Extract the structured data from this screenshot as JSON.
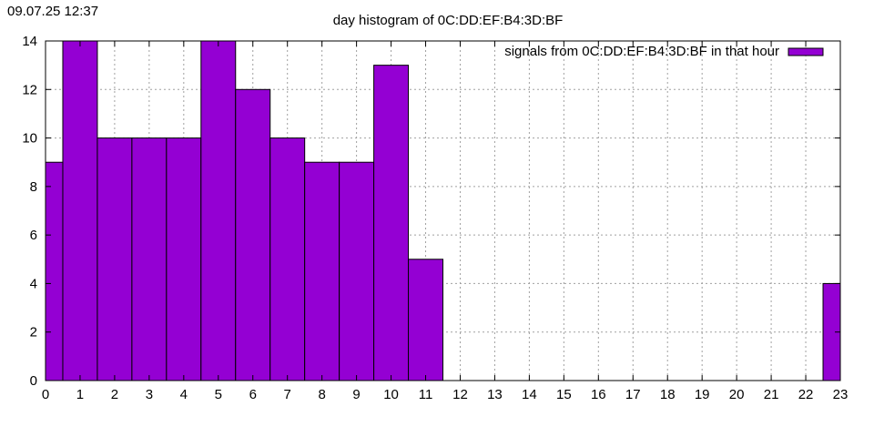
{
  "header": {
    "timestamp": "09.07.25 12:37"
  },
  "chart_data": {
    "type": "bar",
    "title": "day histogram of 0C:DD:EF:B4:3D:BF",
    "xlabel": "",
    "ylabel": "",
    "categories": [
      "0",
      "1",
      "2",
      "3",
      "4",
      "5",
      "6",
      "7",
      "8",
      "9",
      "10",
      "11",
      "12",
      "13",
      "14",
      "15",
      "16",
      "17",
      "18",
      "19",
      "20",
      "21",
      "22",
      "23"
    ],
    "series": [
      {
        "name": "signals from 0C:DD:EF:B4:3D:BF in that hour",
        "color": "#9400d3",
        "values": [
          9,
          14,
          10,
          10,
          10,
          14,
          12,
          10,
          9,
          9,
          13,
          5,
          0,
          0,
          0,
          0,
          0,
          0,
          0,
          0,
          0,
          0,
          0,
          4
        ]
      }
    ],
    "xlim": [
      0,
      23
    ],
    "ylim": [
      0,
      14
    ],
    "yticks": [
      "0",
      "2",
      "4",
      "6",
      "8",
      "10",
      "12",
      "14"
    ],
    "grid": true,
    "legend": "top-right"
  }
}
